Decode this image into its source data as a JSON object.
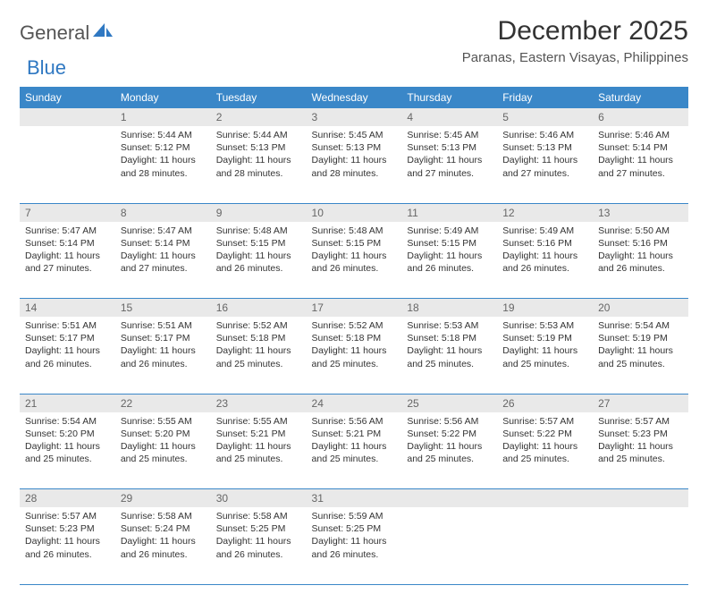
{
  "brand": {
    "general": "General",
    "blue": "Blue"
  },
  "title": "December 2025",
  "location": "Paranas, Eastern Visayas, Philippines",
  "colors": {
    "header_bg": "#3a87c8",
    "daynum_bg": "#e9e9e9",
    "row_divider": "#3a87c8",
    "brand_blue": "#2f78c2",
    "text": "#333333"
  },
  "weekdays": [
    "Sunday",
    "Monday",
    "Tuesday",
    "Wednesday",
    "Thursday",
    "Friday",
    "Saturday"
  ],
  "weeks": [
    {
      "nums": [
        "",
        "1",
        "2",
        "3",
        "4",
        "5",
        "6"
      ],
      "cells": [
        null,
        {
          "sunrise": "5:44 AM",
          "sunset": "5:12 PM",
          "dl": "11 hours and 28 minutes."
        },
        {
          "sunrise": "5:44 AM",
          "sunset": "5:13 PM",
          "dl": "11 hours and 28 minutes."
        },
        {
          "sunrise": "5:45 AM",
          "sunset": "5:13 PM",
          "dl": "11 hours and 28 minutes."
        },
        {
          "sunrise": "5:45 AM",
          "sunset": "5:13 PM",
          "dl": "11 hours and 27 minutes."
        },
        {
          "sunrise": "5:46 AM",
          "sunset": "5:13 PM",
          "dl": "11 hours and 27 minutes."
        },
        {
          "sunrise": "5:46 AM",
          "sunset": "5:14 PM",
          "dl": "11 hours and 27 minutes."
        }
      ]
    },
    {
      "nums": [
        "7",
        "8",
        "9",
        "10",
        "11",
        "12",
        "13"
      ],
      "cells": [
        {
          "sunrise": "5:47 AM",
          "sunset": "5:14 PM",
          "dl": "11 hours and 27 minutes."
        },
        {
          "sunrise": "5:47 AM",
          "sunset": "5:14 PM",
          "dl": "11 hours and 27 minutes."
        },
        {
          "sunrise": "5:48 AM",
          "sunset": "5:15 PM",
          "dl": "11 hours and 26 minutes."
        },
        {
          "sunrise": "5:48 AM",
          "sunset": "5:15 PM",
          "dl": "11 hours and 26 minutes."
        },
        {
          "sunrise": "5:49 AM",
          "sunset": "5:15 PM",
          "dl": "11 hours and 26 minutes."
        },
        {
          "sunrise": "5:49 AM",
          "sunset": "5:16 PM",
          "dl": "11 hours and 26 minutes."
        },
        {
          "sunrise": "5:50 AM",
          "sunset": "5:16 PM",
          "dl": "11 hours and 26 minutes."
        }
      ]
    },
    {
      "nums": [
        "14",
        "15",
        "16",
        "17",
        "18",
        "19",
        "20"
      ],
      "cells": [
        {
          "sunrise": "5:51 AM",
          "sunset": "5:17 PM",
          "dl": "11 hours and 26 minutes."
        },
        {
          "sunrise": "5:51 AM",
          "sunset": "5:17 PM",
          "dl": "11 hours and 26 minutes."
        },
        {
          "sunrise": "5:52 AM",
          "sunset": "5:18 PM",
          "dl": "11 hours and 25 minutes."
        },
        {
          "sunrise": "5:52 AM",
          "sunset": "5:18 PM",
          "dl": "11 hours and 25 minutes."
        },
        {
          "sunrise": "5:53 AM",
          "sunset": "5:18 PM",
          "dl": "11 hours and 25 minutes."
        },
        {
          "sunrise": "5:53 AM",
          "sunset": "5:19 PM",
          "dl": "11 hours and 25 minutes."
        },
        {
          "sunrise": "5:54 AM",
          "sunset": "5:19 PM",
          "dl": "11 hours and 25 minutes."
        }
      ]
    },
    {
      "nums": [
        "21",
        "22",
        "23",
        "24",
        "25",
        "26",
        "27"
      ],
      "cells": [
        {
          "sunrise": "5:54 AM",
          "sunset": "5:20 PM",
          "dl": "11 hours and 25 minutes."
        },
        {
          "sunrise": "5:55 AM",
          "sunset": "5:20 PM",
          "dl": "11 hours and 25 minutes."
        },
        {
          "sunrise": "5:55 AM",
          "sunset": "5:21 PM",
          "dl": "11 hours and 25 minutes."
        },
        {
          "sunrise": "5:56 AM",
          "sunset": "5:21 PM",
          "dl": "11 hours and 25 minutes."
        },
        {
          "sunrise": "5:56 AM",
          "sunset": "5:22 PM",
          "dl": "11 hours and 25 minutes."
        },
        {
          "sunrise": "5:57 AM",
          "sunset": "5:22 PM",
          "dl": "11 hours and 25 minutes."
        },
        {
          "sunrise": "5:57 AM",
          "sunset": "5:23 PM",
          "dl": "11 hours and 25 minutes."
        }
      ]
    },
    {
      "nums": [
        "28",
        "29",
        "30",
        "31",
        "",
        "",
        ""
      ],
      "cells": [
        {
          "sunrise": "5:57 AM",
          "sunset": "5:23 PM",
          "dl": "11 hours and 26 minutes."
        },
        {
          "sunrise": "5:58 AM",
          "sunset": "5:24 PM",
          "dl": "11 hours and 26 minutes."
        },
        {
          "sunrise": "5:58 AM",
          "sunset": "5:25 PM",
          "dl": "11 hours and 26 minutes."
        },
        {
          "sunrise": "5:59 AM",
          "sunset": "5:25 PM",
          "dl": "11 hours and 26 minutes."
        },
        null,
        null,
        null
      ]
    }
  ]
}
